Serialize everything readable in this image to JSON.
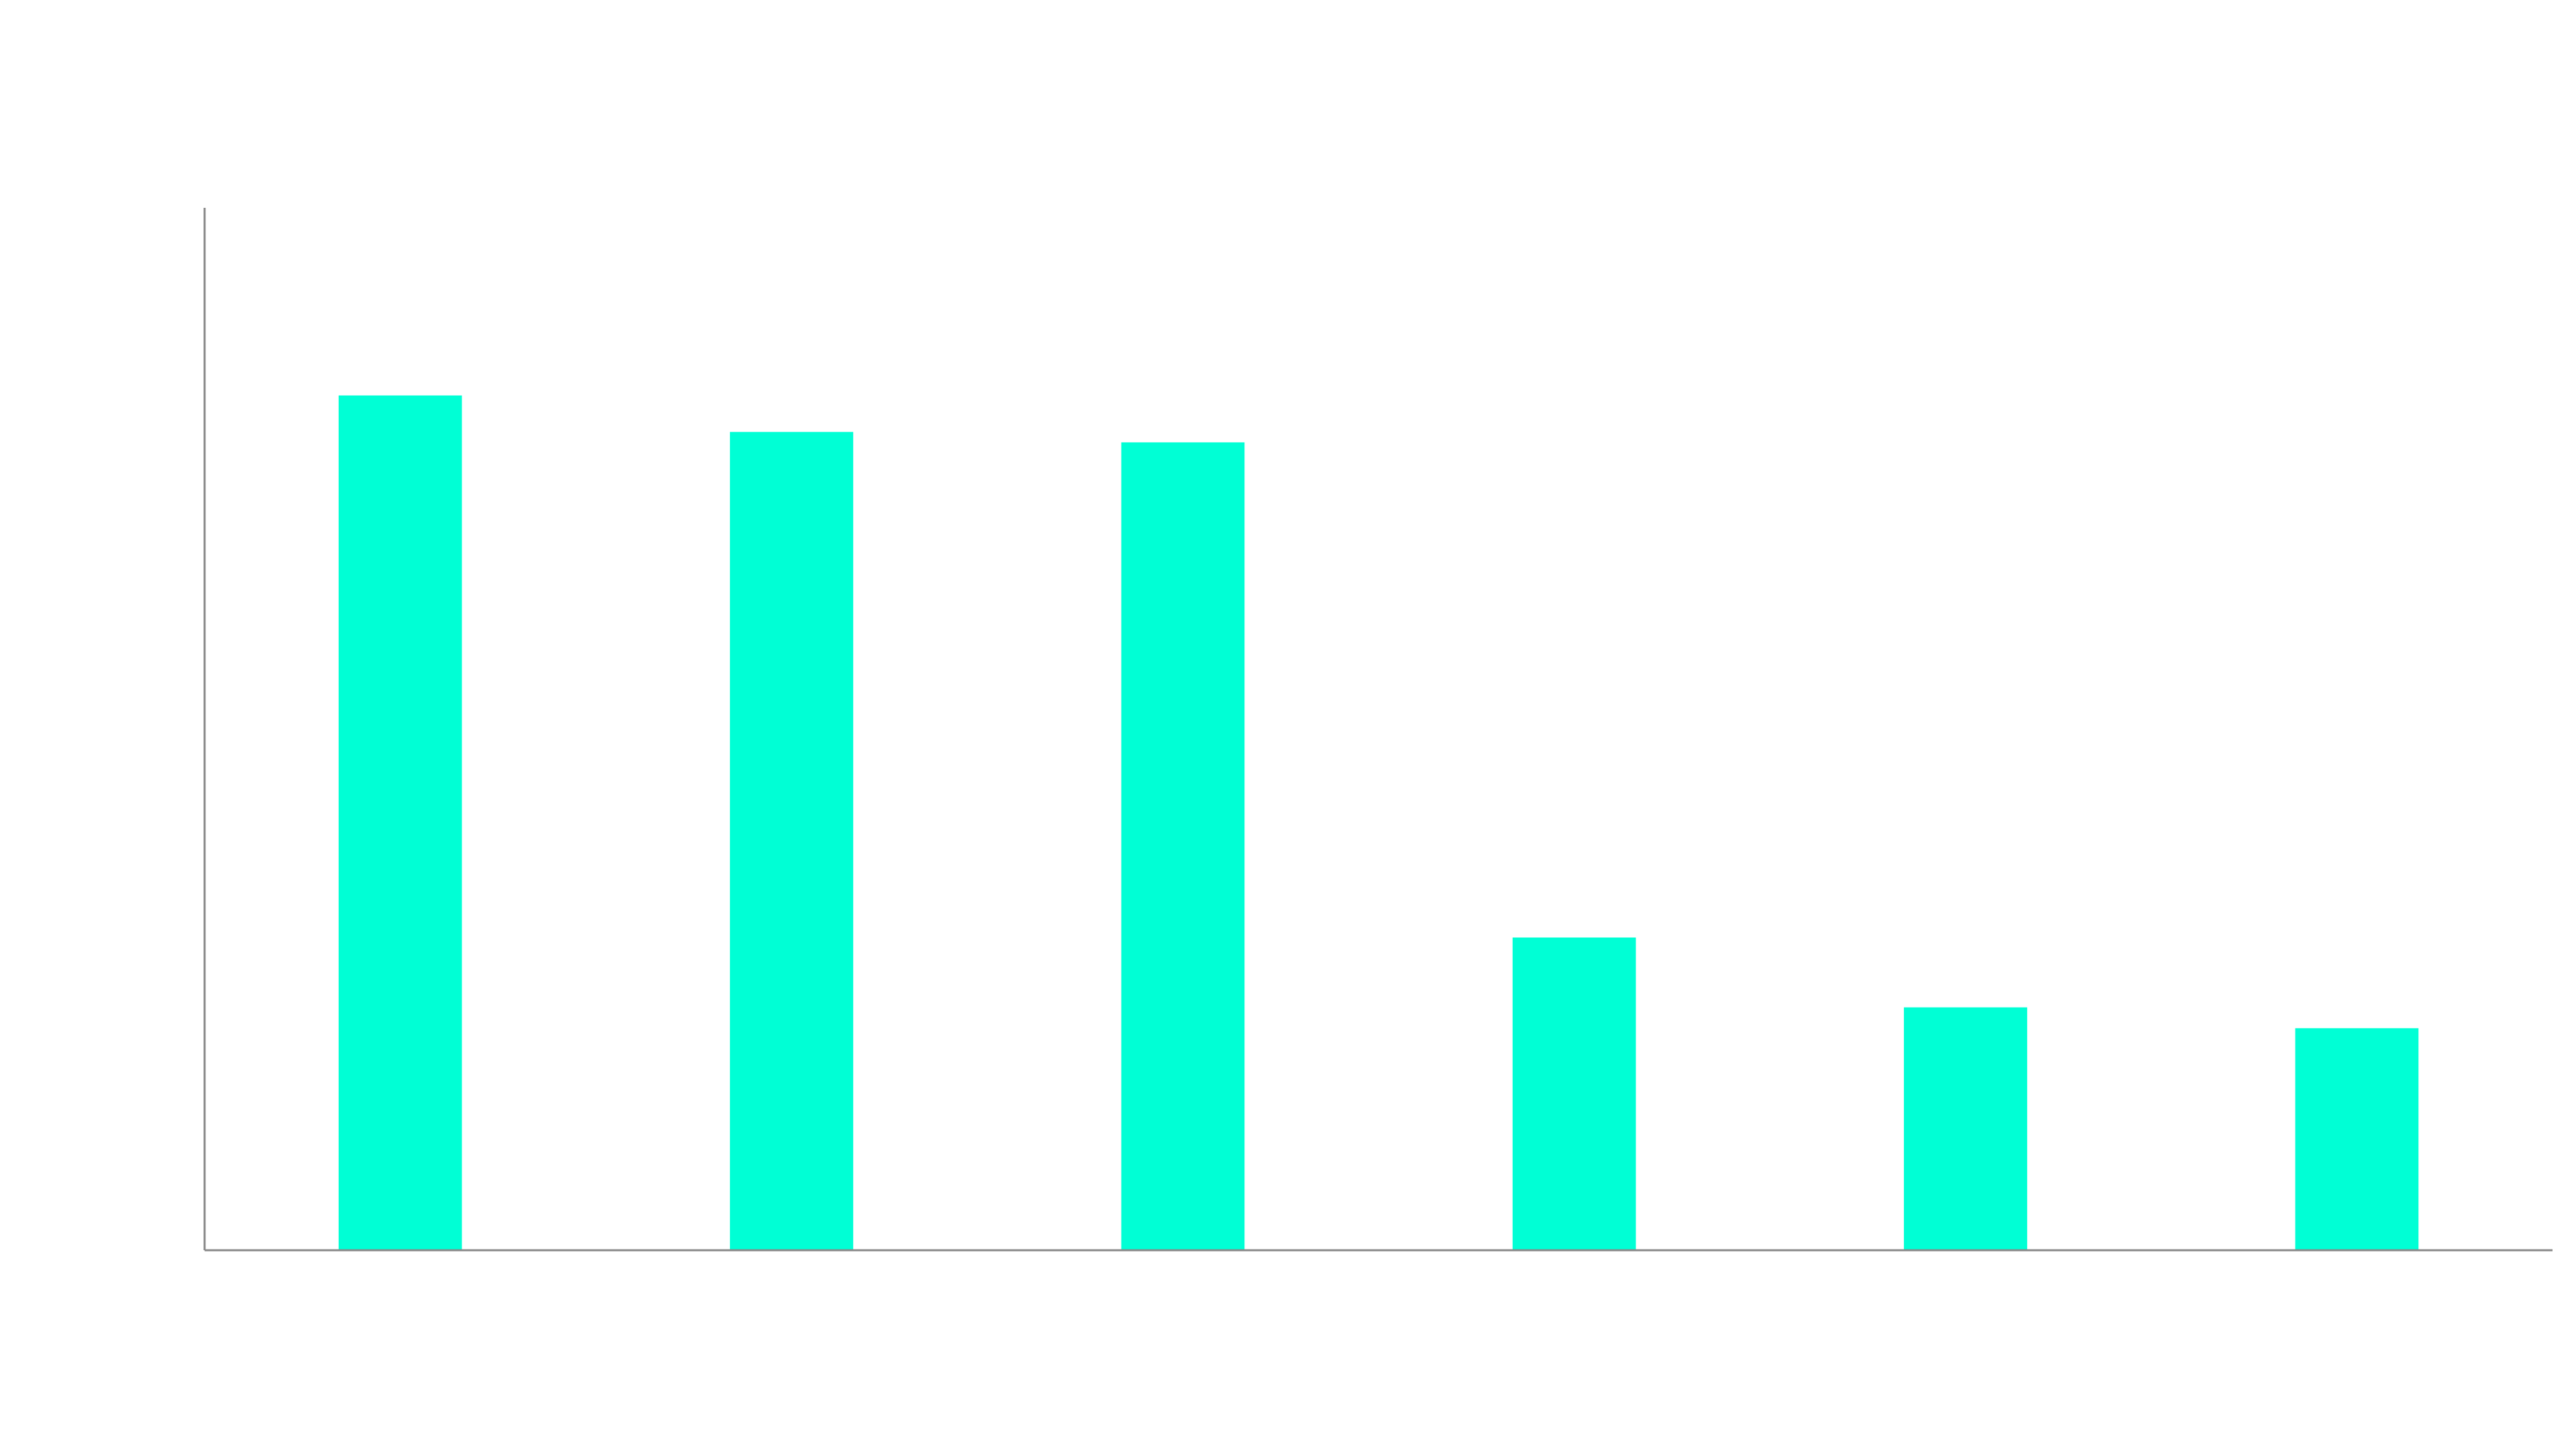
{
  "chart_data": {
    "type": "bar",
    "categories": [
      "",
      "",
      "",
      "",
      "",
      ""
    ],
    "values": [
      82,
      78.5,
      77.5,
      30,
      23.3,
      21.3
    ],
    "title": "",
    "xlabel": "",
    "ylabel": "",
    "ylim": [
      0,
      100
    ],
    "grid": false,
    "legend": "none",
    "bar_color": "#00FFD5",
    "axis_color": "#888888",
    "background_color": "#FFFFFF"
  }
}
